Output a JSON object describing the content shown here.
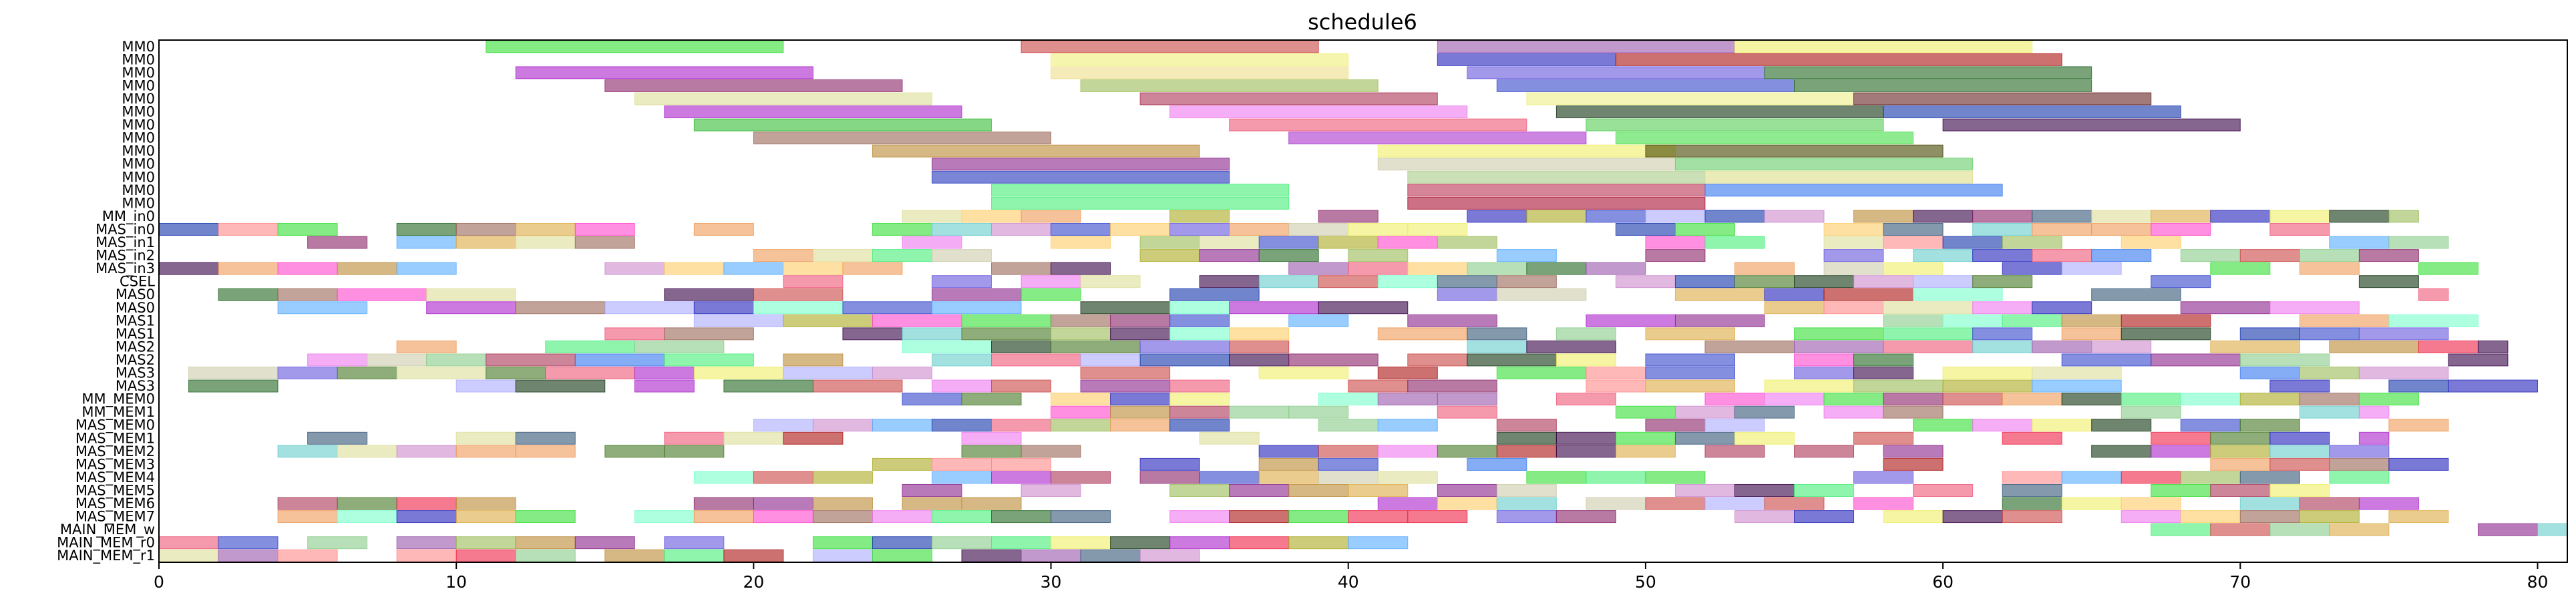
{
  "chart_data": {
    "type": "gantt",
    "title": "schedule6",
    "xlim": [
      0,
      81
    ],
    "x_ticks": [
      0,
      10,
      20,
      30,
      40,
      50,
      60,
      70,
      80
    ],
    "grid": false,
    "rows": [
      "MM0",
      "MM0",
      "MM0",
      "MM0",
      "MM0",
      "MM0",
      "MM0",
      "MM0",
      "MM0",
      "MM0",
      "MM0",
      "MM0",
      "MM0",
      "MM_in0",
      "MAS_in0",
      "MAS_in1",
      "MAS_in2",
      "MAS_in3",
      "CSEL",
      "MAS0",
      "MAS0",
      "MAS1",
      "MAS1",
      "MAS2",
      "MAS2",
      "MAS3",
      "MAS3",
      "MM_MEM0",
      "MM_MEM1",
      "MAS_MEM0",
      "MAS_MEM1",
      "MAS_MEM2",
      "MAS_MEM3",
      "MAS_MEM4",
      "MAS_MEM5",
      "MAS_MEM6",
      "MAS_MEM7",
      "MAIN_MEM_w",
      "MAIN_MEM_r0",
      "MAIN_MEM_r1"
    ],
    "mm0_tasks": [
      [
        [
          11,
          21,
          "#33dd33"
        ],
        [
          29,
          39,
          "#cc4444"
        ],
        [
          43,
          53,
          "#9955aa"
        ],
        [
          53,
          63,
          "#eeee66"
        ]
      ],
      [
        [
          30,
          40,
          "#eeee77"
        ],
        [
          43,
          49,
          "#2222bb"
        ],
        [
          49,
          64,
          "#aa1111"
        ]
      ],
      [
        [
          12,
          22,
          "#aa22cc"
        ],
        [
          30,
          40,
          "#eedd88"
        ],
        [
          44,
          54,
          "#6655dd"
        ],
        [
          54,
          65,
          "#226622"
        ]
      ],
      [
        [
          15,
          25,
          "#882266"
        ],
        [
          31,
          41,
          "#99bb55"
        ],
        [
          45,
          55,
          "#3344cc"
        ],
        [
          55,
          65,
          "#226622"
        ]
      ],
      [
        [
          16,
          26,
          "#dddd99"
        ],
        [
          33,
          43,
          "#aa3355"
        ],
        [
          46,
          57,
          "#eeee88"
        ],
        [
          57,
          67,
          "#662222"
        ]
      ],
      [
        [
          17,
          27,
          "#aa22cc"
        ],
        [
          34,
          44,
          "#ee77ee"
        ],
        [
          47,
          58,
          "#113311"
        ],
        [
          58,
          68,
          "#1133aa"
        ]
      ],
      [
        [
          18,
          28,
          "#33bb33"
        ],
        [
          36,
          46,
          "#ee5577"
        ],
        [
          48,
          58,
          "#55cc55"
        ],
        [
          60,
          70,
          "#330044"
        ]
      ],
      [
        [
          20,
          30,
          "#996655"
        ],
        [
          38,
          48,
          "#aa33cc"
        ],
        [
          49,
          59,
          "#44dd44"
        ]
      ],
      [
        [
          24,
          35,
          "#bb8833"
        ],
        [
          41,
          51,
          "#eeee66"
        ],
        [
          50,
          60,
          "#444400"
        ]
      ],
      [
        [
          26,
          36,
          "#882288"
        ],
        [
          41,
          51,
          "#ccccaa"
        ],
        [
          51,
          61,
          "#66cc66"
        ]
      ],
      [
        [
          26,
          36,
          "#2233bb"
        ],
        [
          42,
          52,
          "#aacc88"
        ],
        [
          52,
          61,
          "#dddd88"
        ]
      ],
      [
        [
          28,
          38,
          "#44ee77"
        ],
        [
          42,
          52,
          "#bb3355"
        ],
        [
          52,
          62,
          "#3377ee"
        ]
      ],
      [
        [
          28,
          38,
          "#44ee77"
        ],
        [
          42,
          52,
          "#aa1133"
        ]
      ]
    ],
    "dense_start": {
      "MM_in0": 25,
      "MAS_in0": 0,
      "MAS_in1": 5,
      "MAS_in2": 20,
      "MAS_in3": 0,
      "CSEL": 20,
      "MAS0": 2,
      "MAS1": 10,
      "MAS2": 5,
      "MAS3": 1,
      "MM_MEM0": 25,
      "MM_MEM1": 27,
      "MAS_MEM0": 20,
      "MAS_MEM1": 4,
      "MAS_MEM2": 4,
      "MAS_MEM3": 24,
      "MAS_MEM4": 15,
      "MAS_MEM5": 25,
      "MAS_MEM6": 4,
      "MAS_MEM7": 4,
      "MAIN_MEM_w": 61,
      "MAIN_MEM_r0": 0,
      "MAIN_MEM_r1": 0
    },
    "dense_end": {
      "MM_in0": 76,
      "MAS_in0": 76,
      "MAS_in1": 77,
      "MAS_in2": 77,
      "MAS_in3": 78,
      "CSEL": 76,
      "MAS0": 77,
      "MAS1": 78,
      "MAS2": 79,
      "MAS3": 80,
      "MM_MEM0": 76,
      "MM_MEM1": 75,
      "MAS_MEM0": 78,
      "MAS_MEM1": 75,
      "MAS_MEM2": 75,
      "MAS_MEM3": 77,
      "MAS_MEM4": 75,
      "MAS_MEM5": 73,
      "MAS_MEM6": 76,
      "MAS_MEM7": 77,
      "MAIN_MEM_w": 81,
      "MAIN_MEM_r0": 42,
      "MAIN_MEM_r1": 36
    },
    "palette": [
      "#33dd33",
      "#cc4444",
      "#9955aa",
      "#eeee66",
      "#2222bb",
      "#aa1111",
      "#aa22cc",
      "#6655dd",
      "#226622",
      "#882266",
      "#99bb55",
      "#3344cc",
      "#dddd99",
      "#aa3355",
      "#ee77ee",
      "#113311",
      "#1133aa",
      "#ee5577",
      "#330044",
      "#996655",
      "#bb8833",
      "#882288",
      "#ccccaa",
      "#44ee77",
      "#3377ee",
      "#66cccc",
      "#ee9955",
      "#ff44cc",
      "#55aaff",
      "#aaaa22",
      "#ee2244",
      "#88cc88",
      "#cc88cc",
      "#ddaa44",
      "#335577",
      "#77ffcc",
      "#aaaaff",
      "#ff8888",
      "#447722",
      "#ffcc66"
    ]
  }
}
